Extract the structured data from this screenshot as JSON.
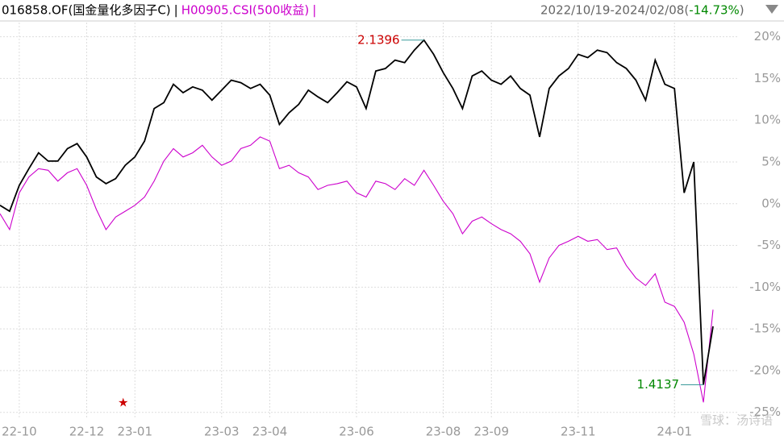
{
  "chart_data": {
    "type": "line",
    "header": {
      "separator": "|",
      "range_open": "2022/10/19-2024/02/08(",
      "change": "-14.73%",
      "range_close": ")"
    },
    "categories": [
      null,
      null,
      "22-10",
      null,
      null,
      null,
      null,
      null,
      null,
      "22-12",
      null,
      null,
      null,
      null,
      "23-01",
      null,
      null,
      null,
      null,
      null,
      null,
      null,
      null,
      "23-03",
      null,
      null,
      null,
      null,
      "23-04",
      null,
      null,
      null,
      null,
      null,
      null,
      null,
      null,
      "23-06",
      null,
      null,
      null,
      null,
      null,
      null,
      null,
      null,
      "23-08",
      null,
      null,
      null,
      null,
      "23-09",
      null,
      null,
      null,
      null,
      null,
      null,
      null,
      null,
      "23-11",
      null,
      null,
      null,
      null,
      null,
      null,
      null,
      null,
      null,
      "24-01",
      null,
      null,
      null,
      null
    ],
    "series": [
      {
        "name": "016858.OF(国金量化多因子C)",
        "color": "#000000",
        "values": [
          -0.2,
          -0.9,
          2.2,
          4.2,
          6.1,
          5.1,
          5.1,
          6.6,
          7.2,
          5.6,
          3.2,
          2.4,
          3.0,
          4.6,
          5.6,
          7.5,
          11.4,
          12.1,
          14.3,
          13.3,
          14.0,
          13.6,
          12.4,
          13.6,
          14.8,
          14.5,
          13.8,
          14.3,
          13.0,
          9.5,
          10.9,
          11.9,
          13.6,
          12.8,
          12.1,
          13.3,
          14.6,
          14.0,
          11.4,
          15.9,
          16.2,
          17.2,
          16.9,
          18.4,
          19.6,
          17.9,
          15.7,
          13.8,
          11.4,
          15.3,
          15.9,
          14.8,
          14.3,
          15.3,
          13.8,
          13.0,
          8.0,
          13.8,
          15.3,
          16.2,
          17.9,
          17.5,
          18.4,
          18.1,
          16.9,
          16.2,
          14.8,
          12.4,
          17.2,
          14.3,
          13.8,
          1.3,
          5.0,
          -21.7,
          -14.7
        ]
      },
      {
        "name": "H00905.CSI(500收益)",
        "color": "#cc00cc",
        "values": [
          -1.2,
          -3.1,
          1.3,
          3.2,
          4.2,
          4.0,
          2.7,
          3.7,
          4.2,
          2.2,
          -0.7,
          -3.1,
          -1.6,
          -0.9,
          -0.2,
          0.8,
          2.7,
          5.1,
          6.6,
          5.6,
          6.1,
          7.0,
          5.6,
          4.6,
          5.1,
          6.6,
          7.0,
          8.0,
          7.5,
          4.2,
          4.6,
          3.7,
          3.2,
          1.7,
          2.2,
          2.4,
          2.7,
          1.3,
          0.8,
          2.7,
          2.4,
          1.7,
          3.0,
          2.2,
          4.0,
          2.2,
          0.3,
          -1.2,
          -3.6,
          -2.1,
          -1.6,
          -2.4,
          -3.1,
          -3.6,
          -4.5,
          -6.0,
          -9.4,
          -6.5,
          -5.0,
          -4.5,
          -3.9,
          -4.5,
          -4.3,
          -5.5,
          -5.3,
          -7.4,
          -8.9,
          -9.8,
          -8.4,
          -11.8,
          -12.3,
          -14.2,
          -18.0,
          -23.8,
          -12.7
        ]
      }
    ],
    "annotations": [
      {
        "text": "2.1396",
        "series": 0,
        "index": 44,
        "color": "#cc0000"
      },
      {
        "text": "1.4137",
        "series": 0,
        "index": 73,
        "color": "#008800"
      }
    ],
    "watermark": "雪球：汤诗语",
    "ylim": [
      -25.8,
      21.7
    ],
    "yticks": [
      {
        "value": 20,
        "label": "20%"
      },
      {
        "value": 15,
        "label": "15%"
      },
      {
        "value": 10,
        "label": "10%"
      },
      {
        "value": 5,
        "label": "5%"
      },
      {
        "value": 0,
        "label": "0%"
      },
      {
        "value": -5,
        "label": "-5%"
      },
      {
        "value": -10,
        "label": "-10%"
      },
      {
        "value": -15,
        "label": "-15%"
      },
      {
        "value": -20,
        "label": "-20%"
      },
      {
        "value": -25,
        "label": "-25%"
      }
    ],
    "grid": true
  }
}
